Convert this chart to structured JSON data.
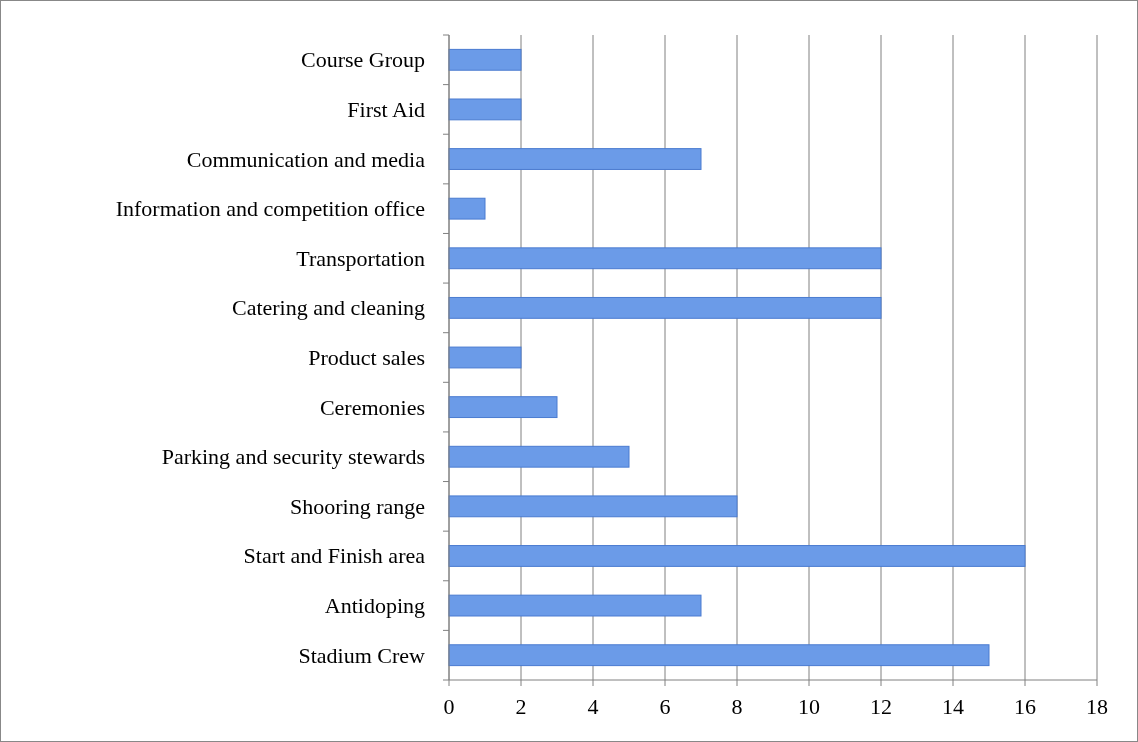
{
  "chart_data": {
    "type": "bar",
    "orientation": "horizontal",
    "categories": [
      "Course Group",
      "First Aid",
      "Communication and media",
      "Information and competition office",
      "Transportation",
      "Catering and cleaning",
      "Product sales",
      "Ceremonies",
      "Parking and security stewards",
      "Shooring range",
      "Start and Finish area",
      "Antidoping",
      "Stadium Crew"
    ],
    "values": [
      2,
      2,
      7,
      1,
      12,
      12,
      2,
      3,
      5,
      8,
      16,
      7,
      15
    ],
    "color": "#6b9be8",
    "xlim": [
      0,
      18
    ],
    "xticks": [
      0,
      2,
      4,
      6,
      8,
      10,
      12,
      14,
      16,
      18
    ],
    "grid": "x"
  }
}
